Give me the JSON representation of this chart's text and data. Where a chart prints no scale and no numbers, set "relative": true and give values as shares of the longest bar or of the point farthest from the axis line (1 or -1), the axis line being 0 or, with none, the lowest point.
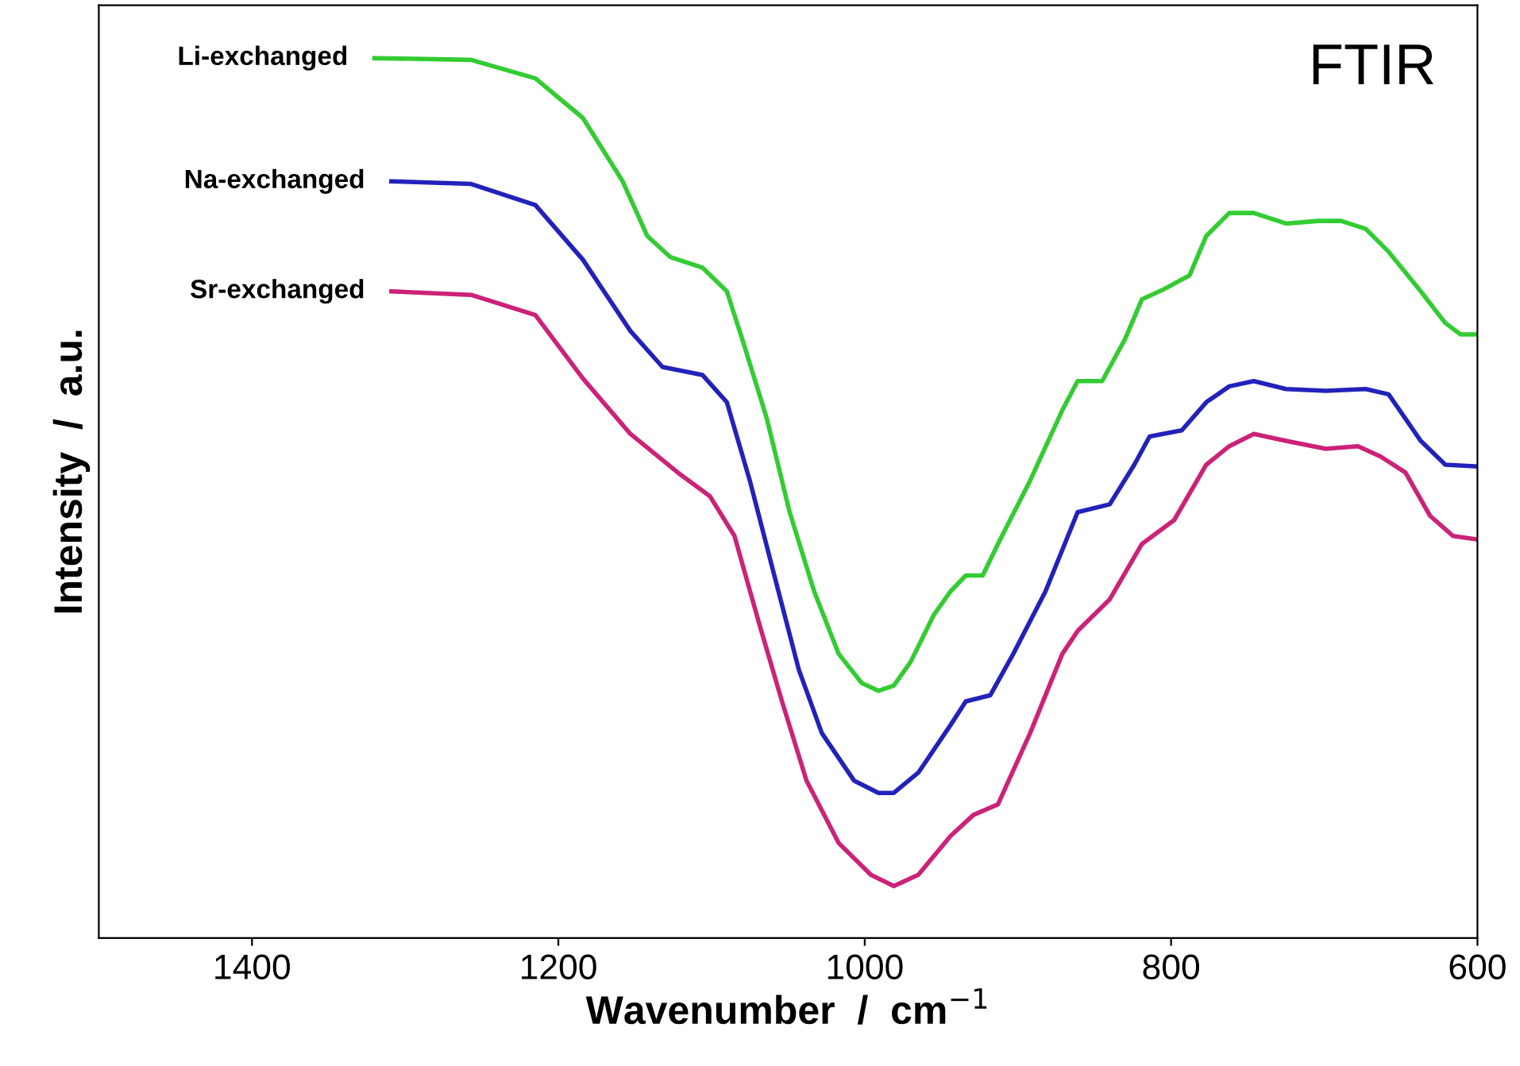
{
  "chart_data": {
    "type": "line",
    "relative": true,
    "xlabel": "Wavenumber  /  cm$^{−1}$",
    "ylabel": "Intensity  /  a.u.",
    "annotations": [
      "FTIR"
    ],
    "xlim": [
      1500,
      600
    ],
    "xticks": [
      1400,
      1200,
      1000,
      800,
      600
    ],
    "tick_labels": "x",
    "legend": false,
    "grid": false,
    "marker": "none",
    "line_style": "solid",
    "series": [
      {
        "name": "Li-exchanged",
        "color": "#33cc33",
        "x": [
          1320,
          1257,
          1215,
          1184,
          1158,
          1142,
          1127,
          1106,
          1090,
          1080,
          1064,
          1049,
          1033,
          1017,
          1002,
          991,
          981,
          970,
          955,
          944,
          934,
          923,
          913,
          892,
          871,
          861,
          845,
          830,
          819,
          804,
          788,
          777,
          762,
          746,
          725,
          704,
          689,
          673,
          658,
          637,
          621,
          611,
          600
        ],
        "values": [
          1.0,
          0.998,
          0.977,
          0.932,
          0.86,
          0.798,
          0.774,
          0.762,
          0.735,
          0.681,
          0.591,
          0.484,
          0.394,
          0.323,
          0.29,
          0.281,
          0.287,
          0.314,
          0.367,
          0.394,
          0.412,
          0.412,
          0.448,
          0.52,
          0.6,
          0.633,
          0.633,
          0.681,
          0.726,
          0.738,
          0.753,
          0.798,
          0.824,
          0.824,
          0.812,
          0.815,
          0.815,
          0.806,
          0.78,
          0.735,
          0.699,
          0.686,
          0.686
        ]
      },
      {
        "name": "Na-exchanged",
        "color": "#2222bb",
        "x": [
          1309,
          1257,
          1215,
          1184,
          1153,
          1132,
          1106,
          1090,
          1075,
          1059,
          1043,
          1028,
          1007,
          991,
          981,
          965,
          944,
          934,
          918,
          903,
          882,
          861,
          840,
          824,
          814,
          793,
          777,
          762,
          746,
          725,
          699,
          673,
          658,
          637,
          621,
          600
        ],
        "values": [
          0.86,
          0.857,
          0.833,
          0.771,
          0.69,
          0.649,
          0.64,
          0.609,
          0.52,
          0.412,
          0.305,
          0.233,
          0.179,
          0.165,
          0.165,
          0.188,
          0.242,
          0.269,
          0.276,
          0.323,
          0.394,
          0.484,
          0.493,
          0.538,
          0.57,
          0.577,
          0.609,
          0.627,
          0.633,
          0.624,
          0.622,
          0.624,
          0.618,
          0.565,
          0.538,
          0.536
        ]
      },
      {
        "name": "Sr-exchanged",
        "color": "#cc2277",
        "x": [
          1309,
          1257,
          1215,
          1184,
          1153,
          1122,
          1101,
          1085,
          1069,
          1054,
          1038,
          1017,
          996,
          981,
          965,
          944,
          929,
          913,
          892,
          871,
          861,
          840,
          819,
          798,
          777,
          762,
          746,
          725,
          699,
          678,
          663,
          647,
          631,
          616,
          600
        ],
        "values": [
          0.735,
          0.731,
          0.708,
          0.636,
          0.573,
          0.529,
          0.502,
          0.457,
          0.358,
          0.269,
          0.179,
          0.108,
          0.072,
          0.059,
          0.072,
          0.116,
          0.14,
          0.152,
          0.233,
          0.323,
          0.349,
          0.385,
          0.448,
          0.475,
          0.538,
          0.559,
          0.573,
          0.565,
          0.556,
          0.559,
          0.547,
          0.529,
          0.48,
          0.457,
          0.453
        ]
      }
    ]
  }
}
